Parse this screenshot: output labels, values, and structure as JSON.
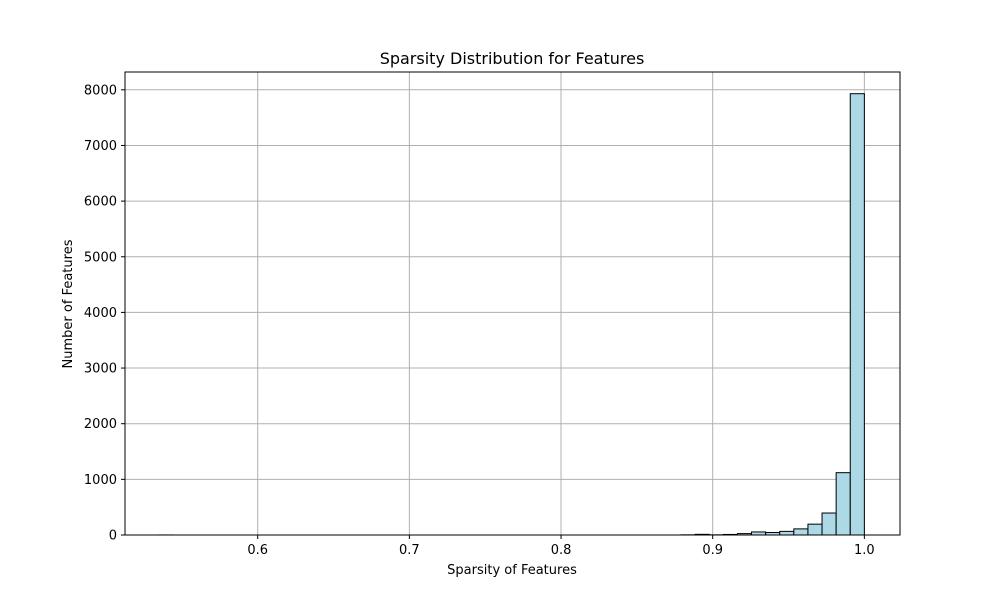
{
  "chart_data": {
    "type": "bar",
    "title": "Sparsity Distribution for Features",
    "xlabel": "Sparsity of Features",
    "ylabel": "Number of Features",
    "xlim": [
      0.5125,
      1.0235
    ],
    "ylim": [
      0,
      8320
    ],
    "x_ticks": [
      0.6,
      0.7,
      0.8,
      0.9,
      1.0
    ],
    "x_tick_labels": [
      "0.6",
      "0.7",
      "0.8",
      "0.9",
      "1.0"
    ],
    "y_ticks": [
      0,
      1000,
      2000,
      3000,
      4000,
      5000,
      6000,
      7000,
      8000
    ],
    "y_tick_labels": [
      "0",
      "1000",
      "2000",
      "3000",
      "4000",
      "5000",
      "6000",
      "7000",
      "8000"
    ],
    "bin_edges": [
      0.535,
      0.5443,
      0.5536,
      0.5629,
      0.5722,
      0.5815,
      0.5908,
      0.6001,
      0.6094,
      0.6187,
      0.628,
      0.6373,
      0.6466,
      0.6559,
      0.6652,
      0.6745,
      0.6838,
      0.6931,
      0.7024,
      0.7117,
      0.721,
      0.7303,
      0.7396,
      0.7489,
      0.7582,
      0.7675,
      0.7768,
      0.7861,
      0.7954,
      0.8047,
      0.814,
      0.8233,
      0.8326,
      0.8419,
      0.8512,
      0.8605,
      0.8698,
      0.8791,
      0.8884,
      0.8977,
      0.907,
      0.9163,
      0.9256,
      0.9349,
      0.9442,
      0.9535,
      0.9628,
      0.9721,
      0.9814,
      0.9907,
      1.0
    ],
    "values": [
      1,
      0,
      0,
      0,
      0,
      0,
      0,
      0,
      0,
      0,
      0,
      0,
      0,
      0,
      0,
      0,
      0,
      0,
      0,
      0,
      0,
      0,
      0,
      0,
      0,
      0,
      0,
      0,
      0,
      0,
      0,
      0,
      0,
      0,
      0,
      0,
      0,
      3,
      12,
      3,
      10,
      25,
      55,
      45,
      65,
      110,
      195,
      395,
      1120,
      7930
    ],
    "bar_color": "#add8e6",
    "edge_color": "#000000",
    "grid": true
  }
}
